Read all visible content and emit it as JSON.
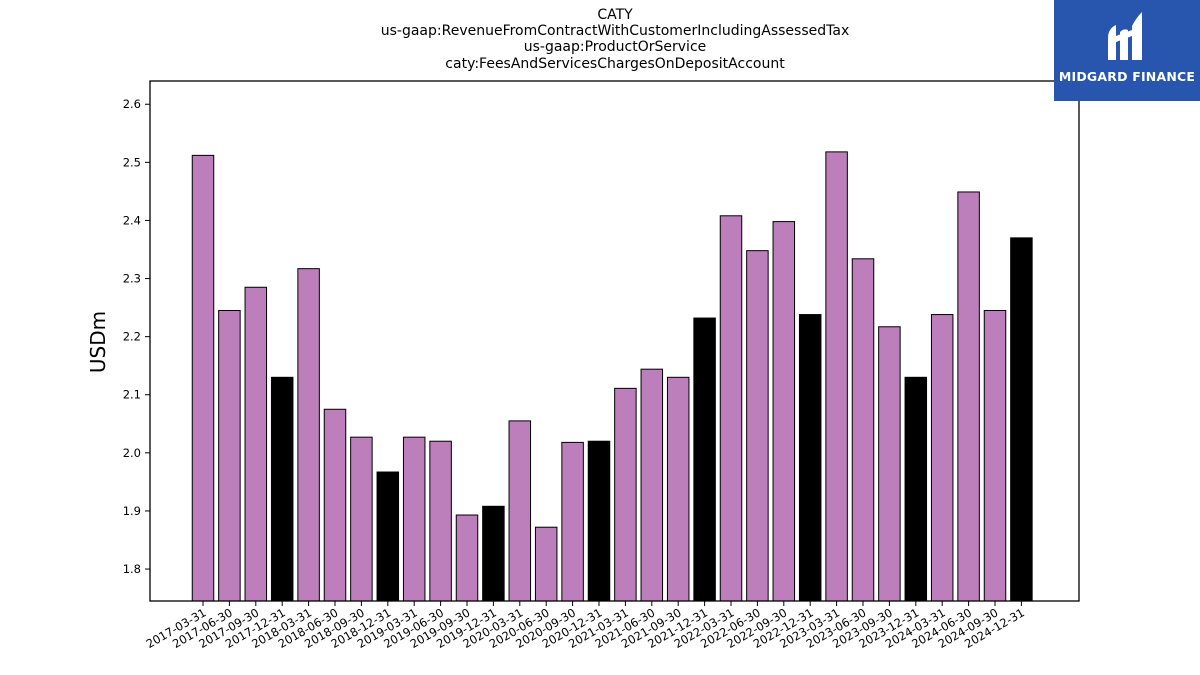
{
  "header": {
    "title_lines": [
      "CATY",
      "us-gaap:RevenueFromContractWithCustomerIncludingAssessedTax",
      "us-gaap:ProductOrService",
      "caty:FeesAndServicesChargesOnDepositAccount"
    ]
  },
  "logo": {
    "text": "MIDGARD FINANCE",
    "icon": "midgard-logo-icon",
    "background": "#2855ad"
  },
  "chart_data": {
    "type": "bar",
    "title": "CATY\nus-gaap:RevenueFromContractWithCustomerIncludingAssessedTax\nus-gaap:ProductOrService\ncaty:FeesAndServicesChargesOnDepositAccount",
    "xlabel": "",
    "ylabel": "USDm",
    "ylim": [
      1.745,
      2.64
    ],
    "yticks": [
      1.8,
      1.9,
      2.0,
      2.1,
      2.2,
      2.3,
      2.4,
      2.5,
      2.6
    ],
    "ytick_labels": [
      "1.8",
      "1.9",
      "2.0",
      "2.1",
      "2.2",
      "2.3",
      "2.4",
      "2.5",
      "2.6"
    ],
    "grid": false,
    "categories": [
      "2017-03-31",
      "2017-06-30",
      "2017-09-30",
      "2017-12-31",
      "2018-03-31",
      "2018-06-30",
      "2018-09-30",
      "2018-12-31",
      "2019-03-31",
      "2019-06-30",
      "2019-09-30",
      "2019-12-31",
      "2020-03-31",
      "2020-06-30",
      "2020-09-30",
      "2020-12-31",
      "2021-03-31",
      "2021-06-30",
      "2021-09-30",
      "2021-12-31",
      "2022-03-31",
      "2022-06-30",
      "2022-09-30",
      "2022-12-31",
      "2023-03-31",
      "2023-06-30",
      "2023-09-30",
      "2023-12-31",
      "2024-03-31",
      "2024-06-30",
      "2024-09-30",
      "2024-12-31"
    ],
    "values": [
      2.512,
      2.245,
      2.285,
      2.13,
      2.317,
      2.075,
      2.027,
      1.967,
      2.027,
      2.02,
      1.893,
      1.908,
      2.055,
      1.872,
      2.018,
      2.02,
      2.111,
      2.144,
      2.13,
      2.232,
      2.408,
      2.348,
      2.398,
      2.238,
      2.518,
      2.334,
      2.217,
      2.13,
      2.238,
      2.449,
      2.245,
      2.37
    ],
    "colors": {
      "quarter": "#bc7fbc",
      "year_end": "#000000",
      "edge": "#000000"
    },
    "bar_kind": [
      "quarter",
      "quarter",
      "quarter",
      "year_end",
      "quarter",
      "quarter",
      "quarter",
      "year_end",
      "quarter",
      "quarter",
      "quarter",
      "year_end",
      "quarter",
      "quarter",
      "quarter",
      "year_end",
      "quarter",
      "quarter",
      "quarter",
      "year_end",
      "quarter",
      "quarter",
      "quarter",
      "year_end",
      "quarter",
      "quarter",
      "quarter",
      "year_end",
      "quarter",
      "quarter",
      "quarter",
      "year_end"
    ]
  }
}
